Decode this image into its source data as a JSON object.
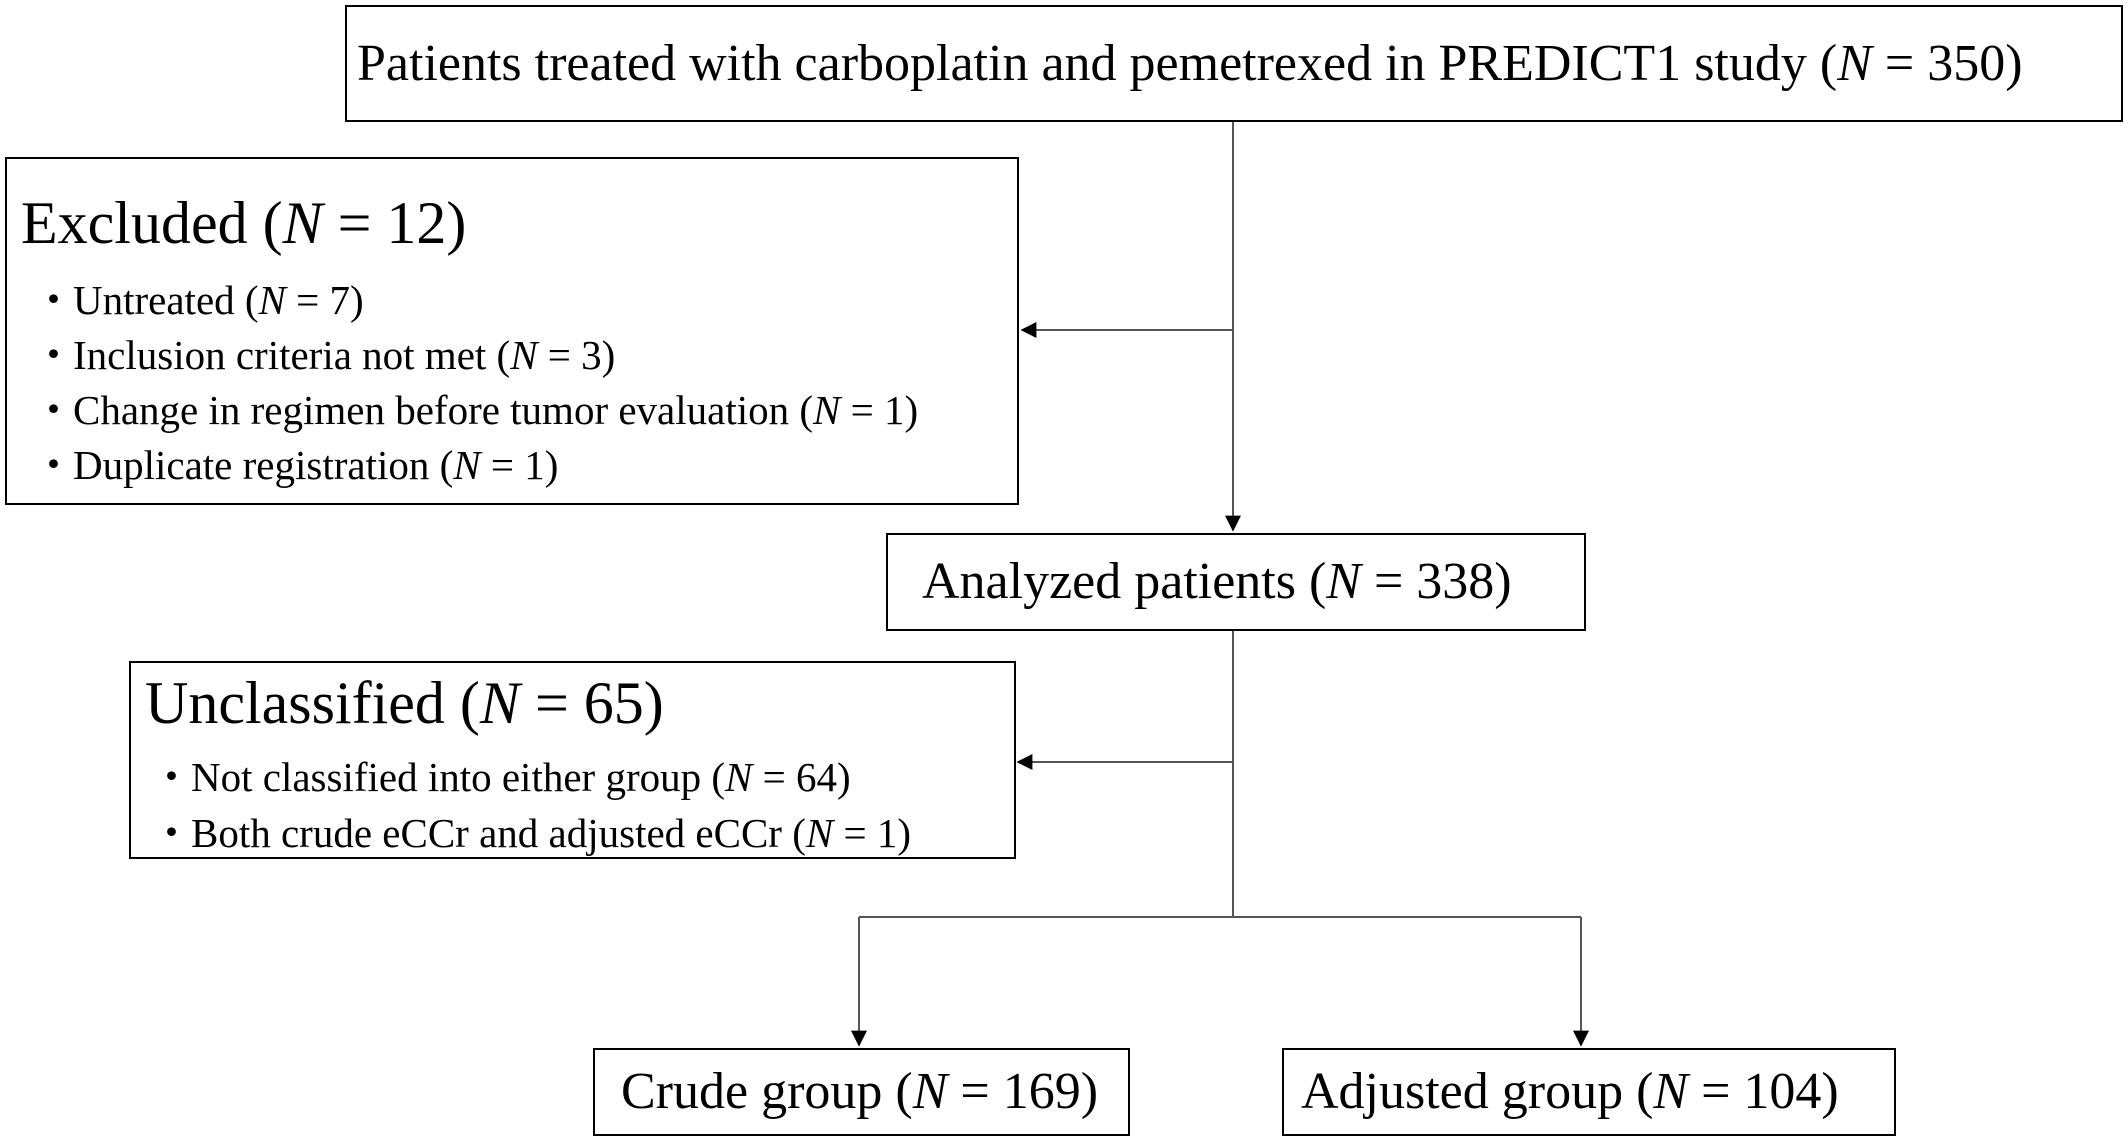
{
  "top_box": {
    "prefix": "Patients treated with carboplatin and pemetrexed in PREDICT1 study (",
    "var": "N",
    "suffix": " = 350)"
  },
  "excluded": {
    "heading": {
      "prefix": "Excluded (",
      "var": "N",
      "suffix": " = 12)"
    },
    "items": [
      {
        "prefix": "Untreated (",
        "var": "N",
        "suffix": " = 7)"
      },
      {
        "prefix": "Inclusion criteria not met (",
        "var": "N",
        "suffix": " = 3)"
      },
      {
        "prefix": "Change in regimen before tumor evaluation (",
        "var": "N",
        "suffix": " = 1)"
      },
      {
        "prefix": "Duplicate registration (",
        "var": "N",
        "suffix": " = 1)"
      }
    ]
  },
  "analyzed": {
    "prefix": "Analyzed patients (",
    "var": "N",
    "suffix": " = 338)"
  },
  "unclassified": {
    "heading": {
      "prefix": "Unclassified (",
      "var": "N",
      "suffix": " = 65)"
    },
    "items": [
      {
        "prefix": "Not classified into either group (",
        "var": "N",
        "suffix": " = 64)"
      },
      {
        "prefix": "Both crude eCCr  and adjusted eCCr (",
        "var": "N",
        "suffix": " = 1)"
      }
    ]
  },
  "crude": {
    "prefix": "Crude group (",
    "var": "N",
    "suffix": " = 169)"
  },
  "adjusted": {
    "prefix": "Adjusted group (",
    "var": "N",
    "suffix": " = 104)"
  },
  "bullet": "・"
}
